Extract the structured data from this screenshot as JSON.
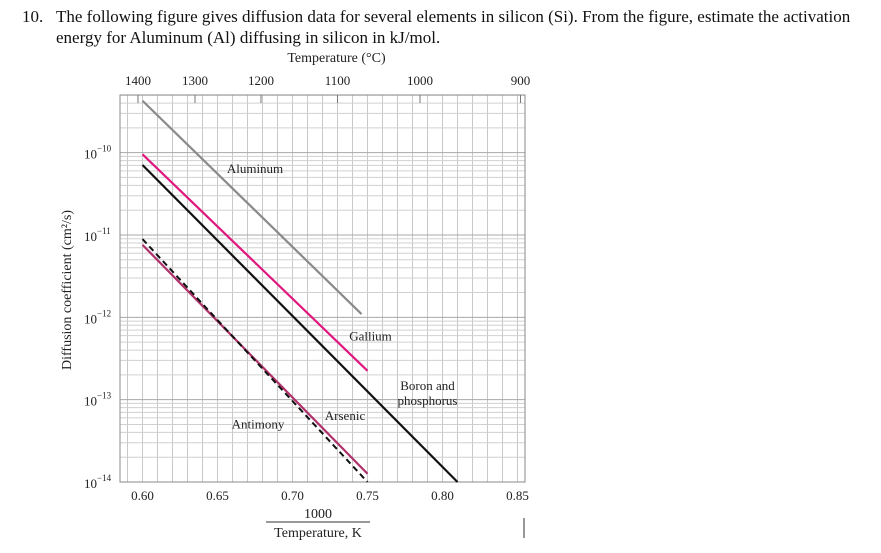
{
  "question": {
    "number": "10.",
    "text": "The following figure gives diffusion data for several elements in silicon (Si).  From the figure, estimate the activation energy for Aluminum (Al) diffusing in silicon in kJ/mol."
  },
  "chart_data": {
    "type": "line",
    "title": "",
    "xlabel_top": "Temperature (°C)",
    "xlabel_bottom_numerator": "1000",
    "xlabel_bottom_denominator": "Temperature, K",
    "ylabel": "Diffusion coefficient (cm²/s)",
    "x_range": [
      0.585,
      0.855
    ],
    "y_log_range": [
      -14,
      -9.3
    ],
    "y_scale": "log",
    "grid": true,
    "x_ticks": [
      {
        "value": 0.6,
        "label": "0.60"
      },
      {
        "value": 0.65,
        "label": "0.65"
      },
      {
        "value": 0.7,
        "label": "0.70"
      },
      {
        "value": 0.75,
        "label": "0.75"
      },
      {
        "value": 0.8,
        "label": "0.80"
      },
      {
        "value": 0.85,
        "label": "0.85"
      }
    ],
    "top_ticks": [
      {
        "value": 0.597,
        "label": "1400"
      },
      {
        "value": 0.635,
        "label": "1300"
      },
      {
        "value": 0.679,
        "label": "1200"
      },
      {
        "value": 0.73,
        "label": "1100"
      },
      {
        "value": 0.785,
        "label": "1000"
      },
      {
        "value": 0.852,
        "label": "900"
      }
    ],
    "y_ticks": [
      {
        "exp": -10,
        "base": "10",
        "sup": "−10"
      },
      {
        "exp": -11,
        "base": "10",
        "sup": "−11"
      },
      {
        "exp": -12,
        "base": "10",
        "sup": "−12"
      },
      {
        "exp": -13,
        "base": "10",
        "sup": "−13"
      },
      {
        "exp": -14,
        "base": "10",
        "sup": "−14"
      }
    ],
    "series": [
      {
        "name": "Aluminum",
        "color": "#8a8a8a",
        "dash": false,
        "points": [
          [
            0.6,
            -9.37
          ],
          [
            0.746,
            -11.96
          ]
        ],
        "label": "Aluminum",
        "label_at": [
          0.675,
          -10.25
        ]
      },
      {
        "name": "Gallium",
        "color": "#e0177e",
        "dash": false,
        "points": [
          [
            0.6,
            -10.02
          ],
          [
            0.75,
            -12.65
          ]
        ],
        "label": "Gallium",
        "label_at": [
          0.752,
          -12.28
        ]
      },
      {
        "name": "Boron and phosphorus",
        "color": "#111111",
        "dash": false,
        "points": [
          [
            0.6,
            -10.15
          ],
          [
            0.81,
            -14.0
          ]
        ],
        "label": "Boron and",
        "label2": "phosphorus",
        "label_at": [
          0.79,
          -12.88
        ]
      },
      {
        "name": "Arsenic",
        "color": "#b0306a",
        "dash": false,
        "points": [
          [
            0.6,
            -11.12
          ],
          [
            0.75,
            -13.9
          ]
        ],
        "label": "Arsenic",
        "label_at": [
          0.735,
          -13.25
        ]
      },
      {
        "name": "Antimony",
        "color": "#111111",
        "dash": true,
        "points": [
          [
            0.6,
            -11.05
          ],
          [
            0.75,
            -14.0
          ]
        ],
        "label": "Antimony",
        "label_at": [
          0.677,
          -13.35
        ]
      }
    ]
  }
}
